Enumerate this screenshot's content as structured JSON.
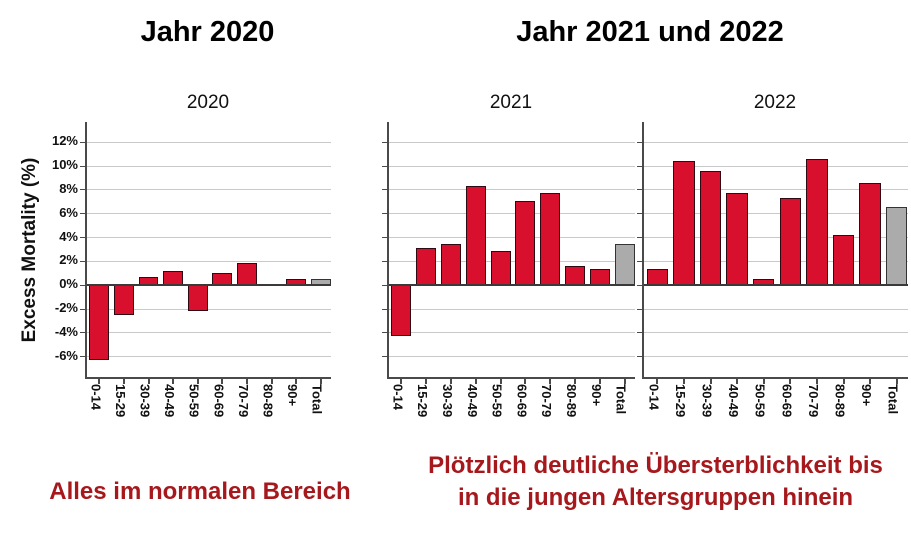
{
  "titles": {
    "left": "Jahr 2020",
    "right": "Jahr 2021 und 2022"
  },
  "captions": {
    "left": "Alles im normalen Bereich",
    "right_line1": "Plötzlich deutliche Übersterblichkeit bis",
    "right_line2": "in die jungen Altersgruppen hinein"
  },
  "y_axis": {
    "title": "Excess Mortality (%)",
    "tick_values": [
      12,
      10,
      8,
      6,
      4,
      2,
      0,
      -2,
      -4,
      -6
    ],
    "tick_labels": [
      "12%",
      "10%",
      "8%",
      "6%",
      "4%",
      "2%",
      "0%",
      "-2%",
      "-4%",
      "-6%"
    ],
    "ymin": -7.7,
    "ymax": 13.7
  },
  "colors": {
    "bar_red": "#d8102e",
    "bar_gray": "#ababab",
    "bar_border": "#2e0a12",
    "gridline": "#c9c9c9",
    "axis": "#4a4a4a",
    "zero_line": "#3a3a3a",
    "caption_red": "#a6181c"
  },
  "chart_data": [
    {
      "type": "bar",
      "title": "2020",
      "categories": [
        "0-14",
        "15-29",
        "30-39",
        "40-49",
        "50-59",
        "60-69",
        "70-79",
        "80-89",
        "90+",
        "Total"
      ],
      "values": [
        -6.3,
        -2.5,
        0.7,
        1.2,
        -2.2,
        1.0,
        1.9,
        0.1,
        0.5,
        0.5
      ],
      "ylabel": "Excess Mortality (%)",
      "ylim": [
        -7.7,
        13.7
      ],
      "gridline_step": 2,
      "grid": true,
      "legend": "none",
      "x_tick_rotation": 90,
      "total_bar_color": "gray",
      "note": "Total bar is gray, all other bars red"
    },
    {
      "type": "bar",
      "title": "2021",
      "categories": [
        "0-14",
        "15-29",
        "30-39",
        "40-49",
        "50-59",
        "60-69",
        "70-79",
        "80-89",
        "90+",
        "Total"
      ],
      "values": [
        -4.3,
        3.1,
        3.5,
        8.3,
        2.9,
        7.1,
        7.7,
        1.6,
        1.4,
        3.5
      ],
      "ylabel": "Excess Mortality (%)",
      "ylim": [
        -7.7,
        13.7
      ],
      "gridline_step": 2,
      "grid": true,
      "legend": "none",
      "x_tick_rotation": 90,
      "total_bar_color": "gray",
      "note": "Total bar is gray, all other bars red"
    },
    {
      "type": "bar",
      "title": "2022",
      "categories": [
        "0-14",
        "15-29",
        "30-39",
        "40-49",
        "50-59",
        "60-69",
        "70-79",
        "80-89",
        "90+",
        "Total"
      ],
      "values": [
        1.4,
        10.4,
        9.6,
        7.7,
        0.5,
        7.3,
        10.6,
        4.2,
        8.6,
        6.6
      ],
      "ylabel": "Excess Mortality (%)",
      "ylim": [
        -7.7,
        13.7
      ],
      "gridline_step": 2,
      "grid": true,
      "legend": "none",
      "x_tick_rotation": 90,
      "total_bar_color": "gray",
      "note": "Total bar is gray, all other bars red"
    }
  ]
}
